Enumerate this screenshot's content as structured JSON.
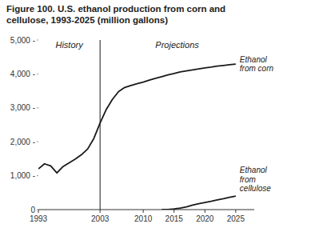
{
  "chart_data": {
    "type": "line",
    "title": "Figure 100. U.S. ethanol production from corn and\ncellulose, 1993-2025 (million gallons)",
    "annotations": [
      "History",
      "Projections"
    ],
    "divider_x": 2003,
    "series": [
      {
        "name": "Ethanol\nfrom corn",
        "color": "#1a1a1a",
        "x": [
          1993,
          1994,
          1995,
          1996,
          1997,
          1998,
          1999,
          2000,
          2001,
          2002,
          2003,
          2004,
          2005,
          2006,
          2007,
          2008,
          2009,
          2010,
          2011,
          2012,
          2013,
          2014,
          2015,
          2016,
          2017,
          2018,
          2019,
          2020,
          2021,
          2022,
          2023,
          2024,
          2025
        ],
        "values": [
          1200,
          1350,
          1290,
          1080,
          1270,
          1380,
          1490,
          1620,
          1790,
          2100,
          2550,
          2950,
          3250,
          3480,
          3600,
          3660,
          3710,
          3760,
          3820,
          3870,
          3920,
          3970,
          4010,
          4060,
          4090,
          4120,
          4150,
          4180,
          4200,
          4230,
          4250,
          4270,
          4290
        ]
      },
      {
        "name": "Ethanol\nfrom\ncellulose",
        "color": "#1a1a1a",
        "x": [
          2013,
          2014,
          2015,
          2016,
          2017,
          2018,
          2019,
          2020,
          2021,
          2022,
          2023,
          2024,
          2025
        ],
        "values": [
          0,
          5,
          20,
          45,
          80,
          130,
          175,
          210,
          245,
          285,
          320,
          360,
          400
        ]
      }
    ],
    "xlim": [
      1993,
      2028
    ],
    "ylim": [
      0,
      5000
    ],
    "xticks": [
      1993,
      2003,
      2010,
      2015,
      2020,
      2025
    ],
    "yticks": [
      0,
      {
        "value": 1000,
        "label": "1,000 -"
      },
      {
        "value": 2000,
        "label": "2,000 -"
      },
      {
        "value": 3000,
        "label": "3,000 -"
      },
      {
        "value": 4000,
        "label": "4,000 -"
      },
      {
        "value": 5000,
        "label": "5,000 -"
      }
    ],
    "grid": false
  }
}
